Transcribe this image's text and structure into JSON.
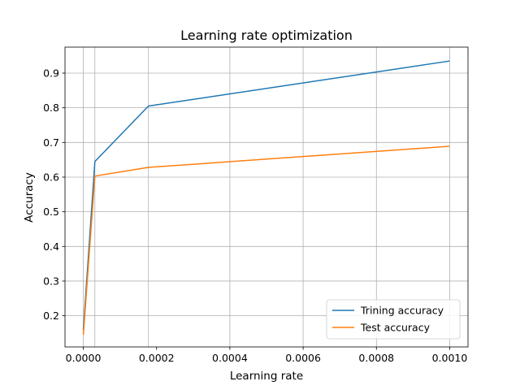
{
  "chart_data": {
    "type": "line",
    "title": "Learning rate optimization",
    "xlabel": "Learning rate",
    "ylabel": "Accuracy",
    "xlim": [
      -5e-05,
      0.00105
    ],
    "ylim": [
      0.11,
      0.975
    ],
    "xticks": [
      {
        "value": 0.0,
        "label": "0.0000"
      },
      {
        "value": 0.0002,
        "label": "0.0002"
      },
      {
        "value": 0.0004,
        "label": "0.0004"
      },
      {
        "value": 0.0006,
        "label": "0.0006"
      },
      {
        "value": 0.0008,
        "label": "0.0008"
      },
      {
        "value": 0.001,
        "label": "0.0010"
      }
    ],
    "yticks": [
      {
        "value": 0.2,
        "label": "0.2"
      },
      {
        "value": 0.3,
        "label": "0.3"
      },
      {
        "value": 0.4,
        "label": "0.4"
      },
      {
        "value": 0.5,
        "label": "0.5"
      },
      {
        "value": 0.6,
        "label": "0.6"
      },
      {
        "value": 0.7,
        "label": "0.7"
      },
      {
        "value": 0.8,
        "label": "0.8"
      },
      {
        "value": 0.9,
        "label": "0.9"
      }
    ],
    "x_gridlines": [
      0.0,
      3.16e-05,
      0.0001778,
      0.0004,
      0.0006,
      0.0008,
      0.001
    ],
    "grid": true,
    "legend_position": "bottom-right",
    "series": [
      {
        "name": "Trining accuracy",
        "color": "#1f77b4",
        "points": [
          {
            "x": 1e-07,
            "y": 0.16
          },
          {
            "x": 3.16e-05,
            "y": 0.645
          },
          {
            "x": 0.0001778,
            "y": 0.805
          },
          {
            "x": 0.001,
            "y": 0.935
          }
        ]
      },
      {
        "name": "Test accuracy",
        "color": "#ff7f0e",
        "points": [
          {
            "x": 1e-07,
            "y": 0.145
          },
          {
            "x": 3.16e-05,
            "y": 0.603
          },
          {
            "x": 0.0001778,
            "y": 0.628
          },
          {
            "x": 0.001,
            "y": 0.689
          }
        ]
      }
    ]
  }
}
